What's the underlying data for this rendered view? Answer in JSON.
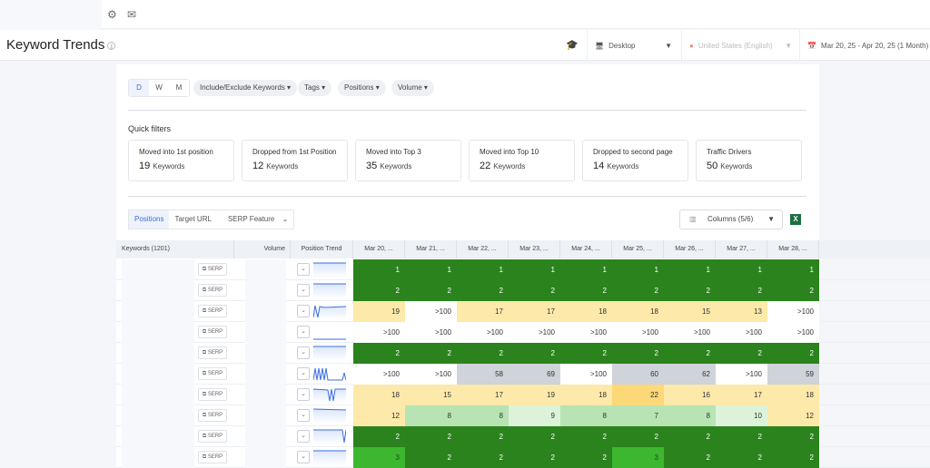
{
  "topbar": {
    "icons": [
      "gear-icon",
      "mail-icon"
    ]
  },
  "header": {
    "title": "Keyword Trends",
    "device": "Desktop",
    "locale": "United States (English)",
    "date_range": "Mar 20, 25 - Apr 20, 25 (1 Month)"
  },
  "filters": {
    "granularity": [
      "D",
      "W",
      "M"
    ],
    "selected": "D",
    "buttons": [
      "Include/Exclude Keywords",
      "Tags",
      "Positions",
      "Volume"
    ]
  },
  "quick_filters": {
    "title": "Quick filters",
    "unit": "Keywords",
    "items": [
      {
        "label": "Moved into 1st position",
        "count": "19"
      },
      {
        "label": "Dropped from 1st Position",
        "count": "12"
      },
      {
        "label": "Moved into Top 3",
        "count": "35"
      },
      {
        "label": "Moved into Top 10",
        "count": "22"
      },
      {
        "label": "Dropped to second page",
        "count": "14"
      },
      {
        "label": "Traffic Drivers",
        "count": "50"
      }
    ]
  },
  "tabs": [
    "Positions",
    "Target URL",
    "SERP Feature"
  ],
  "columns_button": "Columns (5/6)",
  "table": {
    "headers": {
      "keywords": "Keywords (1201)",
      "volume": "Volume",
      "trend": "Position Trend"
    },
    "dates": [
      "Mar 20, ...",
      "Mar 21, ...",
      "Mar 22, ...",
      "Mar 23, ...",
      "Mar 24, ...",
      "Mar 25, ...",
      "Mar 26, ...",
      "Mar 27, ...",
      "Mar 28, ..."
    ],
    "serp_label": "SERP",
    "rows": [
      {
        "v": [
          "1",
          "1",
          "1",
          "1",
          "1",
          "1",
          "1",
          "1",
          "1"
        ],
        "c": [
          "g",
          "g",
          "g",
          "g",
          "g",
          "g",
          "g",
          "g",
          "g"
        ]
      },
      {
        "v": [
          "2",
          "2",
          "2",
          "2",
          "2",
          "2",
          "2",
          "2",
          "2"
        ],
        "c": [
          "g",
          "g",
          "g",
          "g",
          "g",
          "g",
          "g",
          "g",
          "g"
        ]
      },
      {
        "v": [
          "19",
          ">100",
          "17",
          "17",
          "18",
          "18",
          "15",
          "13",
          ">100"
        ],
        "c": [
          "y",
          "w",
          "y",
          "y",
          "y",
          "y",
          "y",
          "y",
          "w"
        ]
      },
      {
        "v": [
          ">100",
          ">100",
          ">100",
          ">100",
          ">100",
          ">100",
          ">100",
          ">100",
          ">100"
        ],
        "c": [
          "w",
          "w",
          "w",
          "w",
          "w",
          "w",
          "w",
          "w",
          "w"
        ]
      },
      {
        "v": [
          "2",
          "2",
          "2",
          "2",
          "2",
          "2",
          "2",
          "2",
          "2"
        ],
        "c": [
          "g",
          "g",
          "g",
          "g",
          "g",
          "g",
          "g",
          "g",
          "g"
        ]
      },
      {
        "v": [
          ">100",
          ">100",
          "58",
          "69",
          ">100",
          "60",
          "62",
          ">100",
          "59"
        ],
        "c": [
          "w",
          "w",
          "gr",
          "gr",
          "w",
          "gr",
          "gr",
          "w",
          "gr"
        ]
      },
      {
        "v": [
          "18",
          "15",
          "17",
          "19",
          "18",
          "22",
          "16",
          "17",
          "18"
        ],
        "c": [
          "y",
          "y",
          "y",
          "y",
          "y",
          "y2",
          "y",
          "y",
          "y"
        ]
      },
      {
        "v": [
          "12",
          "8",
          "8",
          "9",
          "8",
          "7",
          "8",
          "10",
          "12"
        ],
        "c": [
          "y",
          "lg",
          "lg",
          "llg",
          "lg",
          "lg",
          "lg",
          "llg",
          "y"
        ]
      },
      {
        "v": [
          "2",
          "2",
          "2",
          "2",
          "2",
          "2",
          "2",
          "2",
          "2"
        ],
        "c": [
          "g",
          "g",
          "g",
          "g",
          "g",
          "g",
          "g",
          "g",
          "g"
        ]
      },
      {
        "v": [
          "3",
          "2",
          "2",
          "2",
          "2",
          "3",
          "2",
          "2",
          "2"
        ],
        "c": [
          "m",
          "g",
          "g",
          "g",
          "g",
          "m",
          "g",
          "g",
          "g"
        ]
      }
    ]
  }
}
